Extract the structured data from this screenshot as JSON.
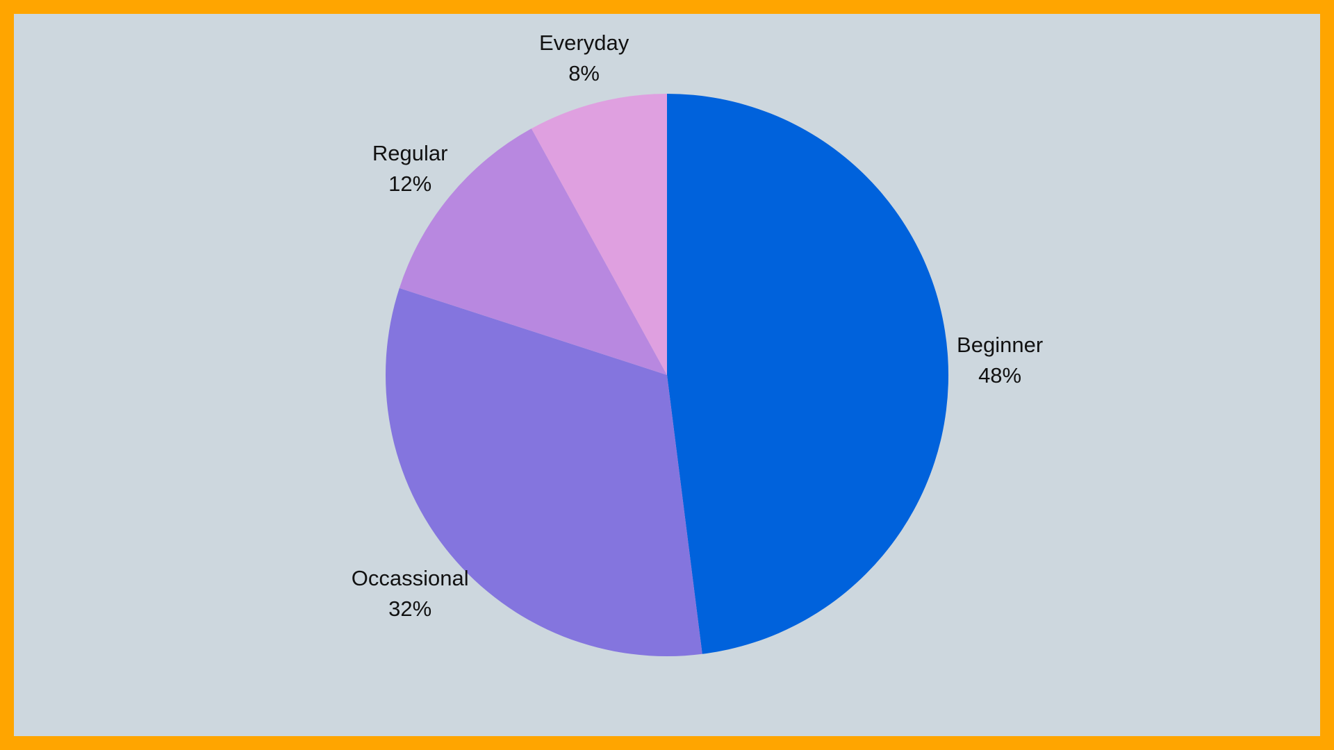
{
  "frame": {
    "border_color": "#FFA500",
    "background_color": "#CDD7DE"
  },
  "chart_data": {
    "type": "pie",
    "title": "",
    "start_angle_deg": 0,
    "direction": "clockwise",
    "slices": [
      {
        "label": "Beginner",
        "value": 48,
        "value_label": "48%",
        "color": "#0062DC"
      },
      {
        "label": "Occassional",
        "value": 32,
        "value_label": "32%",
        "color": "#8475DE"
      },
      {
        "label": "Regular",
        "value": 12,
        "value_label": "12%",
        "color": "#B888E0"
      },
      {
        "label": "Everyday",
        "value": 8,
        "value_label": "8%",
        "color": "#DFA0E0"
      }
    ]
  }
}
